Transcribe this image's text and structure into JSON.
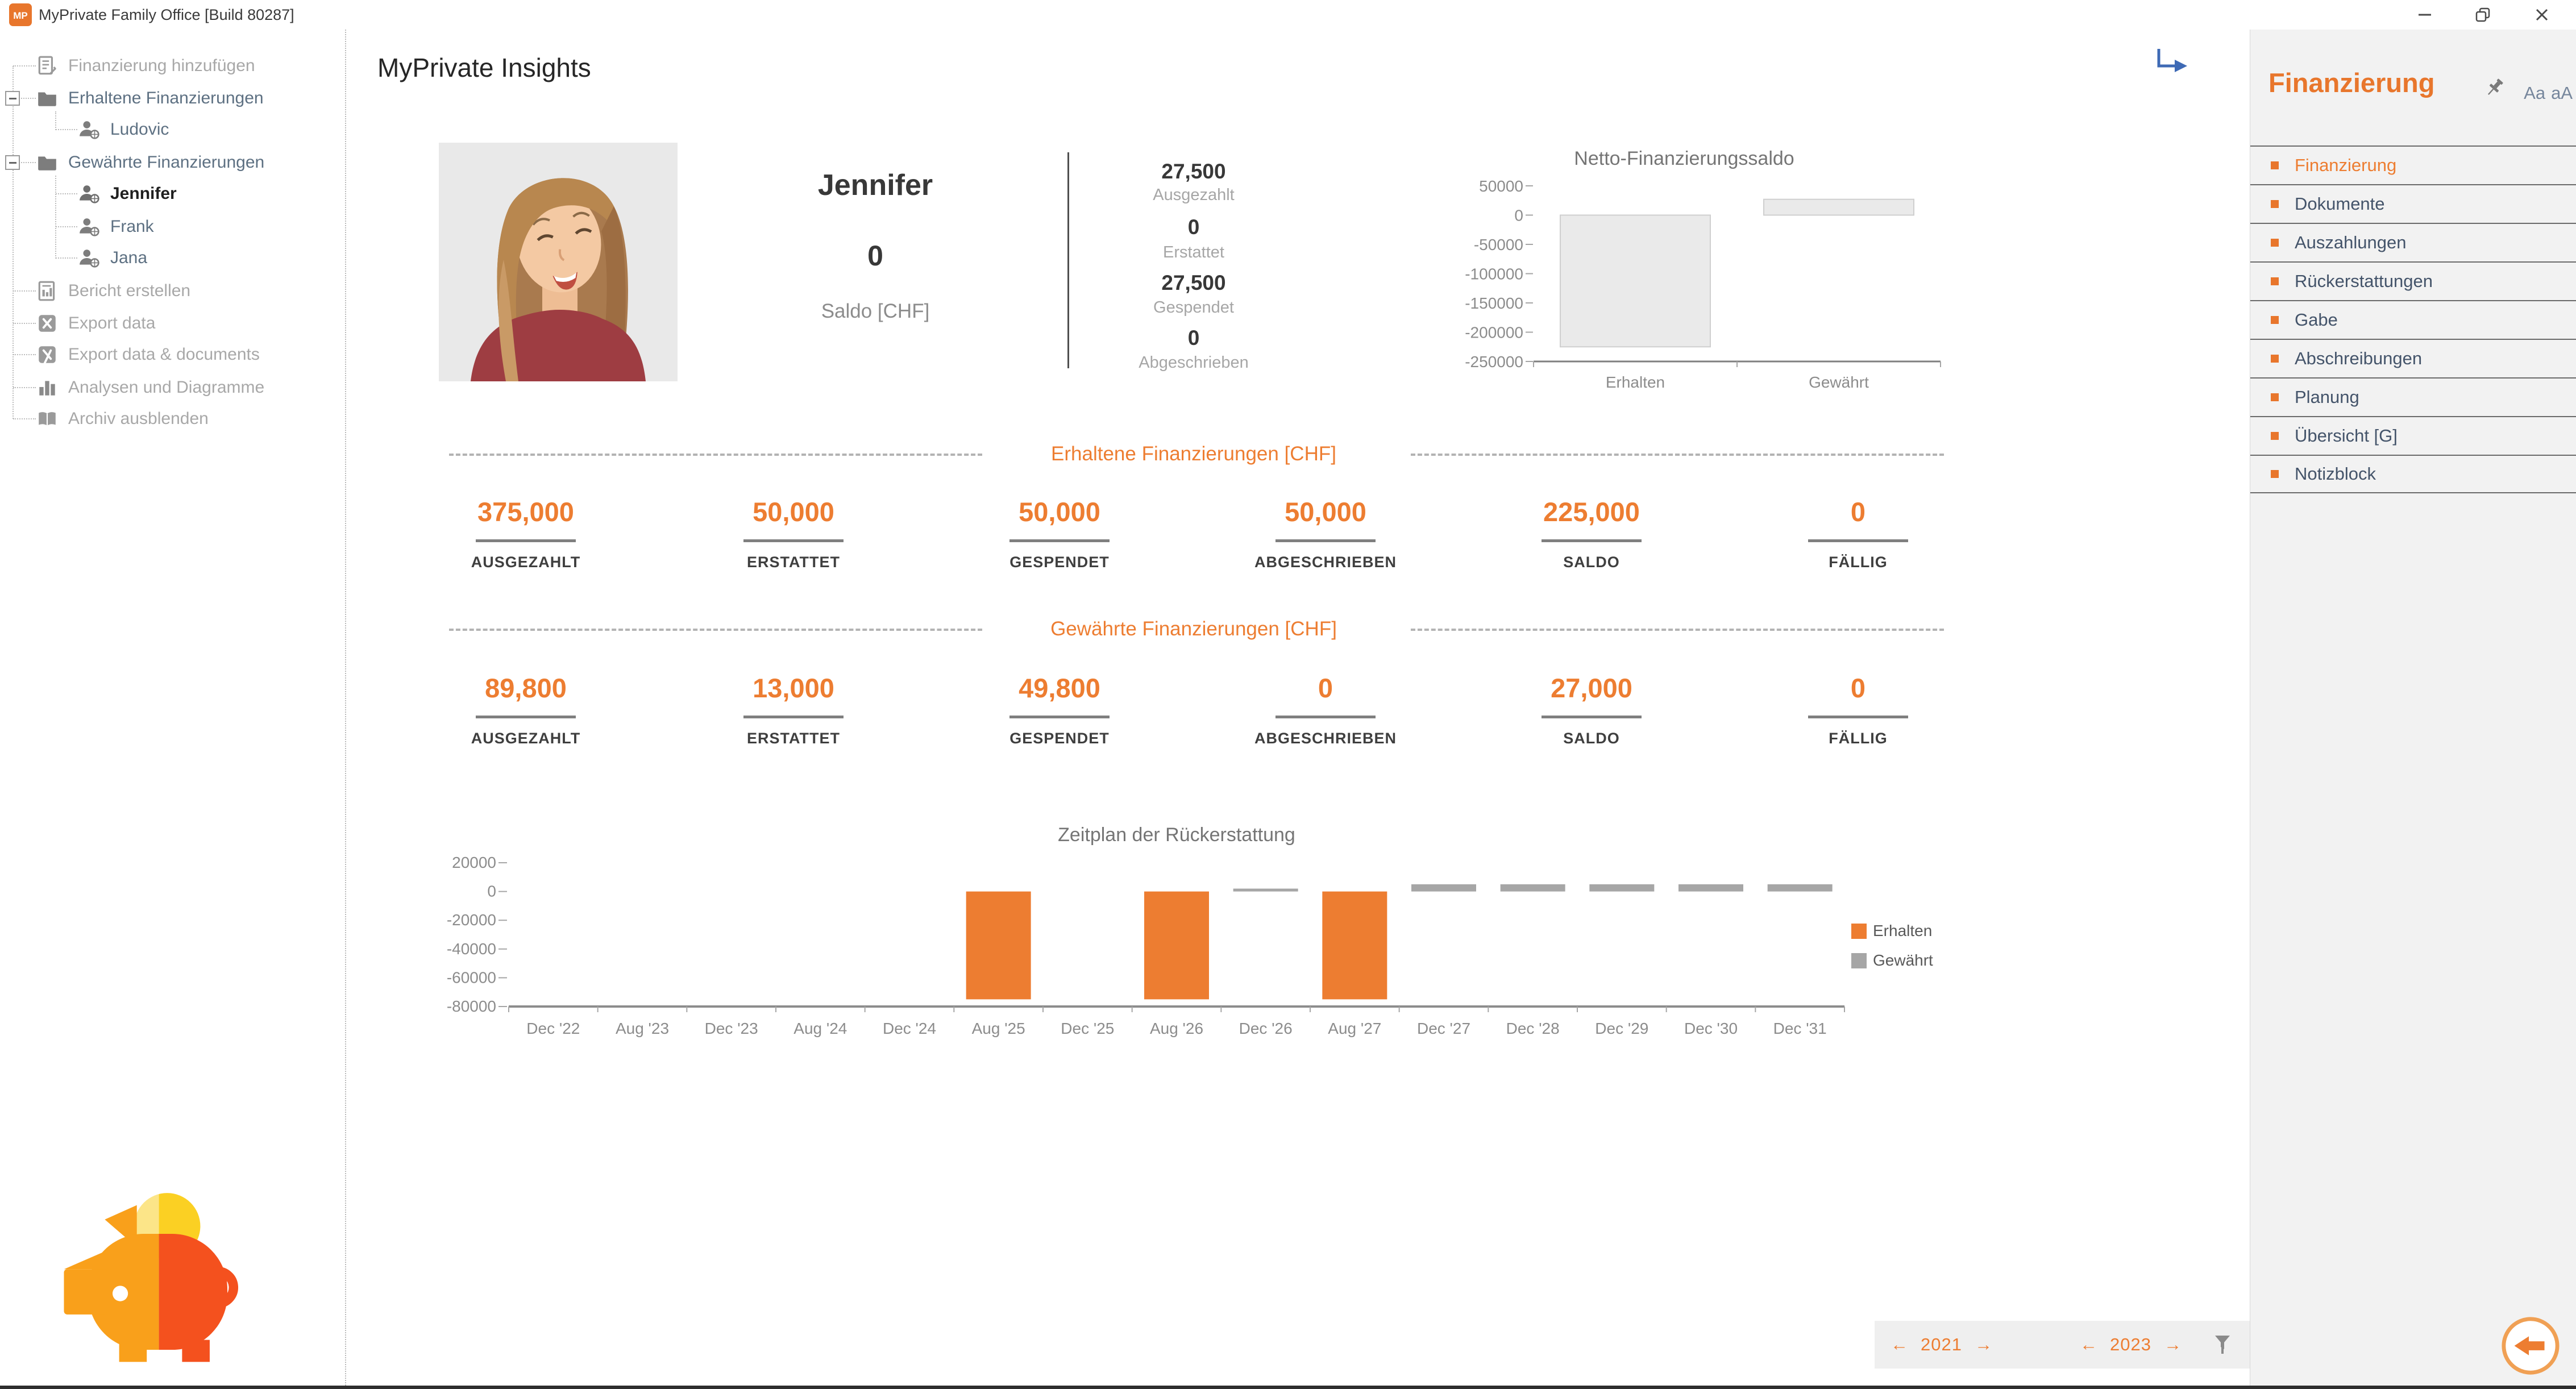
{
  "window": {
    "title": "MyPrivate Family Office [Build 80287]"
  },
  "left_nav": {
    "items": [
      {
        "label": "Finanzierung hinzufügen"
      },
      {
        "label": "Erhaltene Finanzierungen"
      },
      {
        "label": "Ludovic"
      },
      {
        "label": "Gewährte Finanzierungen"
      },
      {
        "label": "Jennifer"
      },
      {
        "label": "Frank"
      },
      {
        "label": "Jana"
      },
      {
        "label": "Bericht erstellen"
      },
      {
        "label": "Export data"
      },
      {
        "label": "Export data & documents"
      },
      {
        "label": "Analysen und Diagramme"
      },
      {
        "label": "Archiv ausblenden"
      }
    ]
  },
  "main": {
    "title": "MyPrivate Insights",
    "profile": {
      "name": "Jennifer",
      "balance_value": "0",
      "balance_label": "Saldo [CHF]",
      "stats": [
        {
          "value": "27,500",
          "label": "Ausgezahlt"
        },
        {
          "value": "0",
          "label": "Erstattet"
        },
        {
          "value": "27,500",
          "label": "Gespendet"
        },
        {
          "value": "0",
          "label": "Abgeschrieben"
        }
      ]
    },
    "sections": [
      {
        "title": "Erhaltene Finanzierungen [CHF]",
        "metrics": [
          {
            "value": "375,000",
            "label": "AUSGEZAHLT"
          },
          {
            "value": "50,000",
            "label": "ERSTATTET"
          },
          {
            "value": "50,000",
            "label": "GESPENDET"
          },
          {
            "value": "50,000",
            "label": "ABGESCHRIEBEN"
          },
          {
            "value": "225,000",
            "label": "SALDO"
          },
          {
            "value": "0",
            "label": "FÄLLIG"
          }
        ]
      },
      {
        "title": "Gewährte Finanzierungen [CHF]",
        "metrics": [
          {
            "value": "89,800",
            "label": "AUSGEZAHLT"
          },
          {
            "value": "13,000",
            "label": "ERSTATTET"
          },
          {
            "value": "49,800",
            "label": "GESPENDET"
          },
          {
            "value": "0",
            "label": "ABGESCHRIEBEN"
          },
          {
            "value": "27,000",
            "label": "SALDO"
          },
          {
            "value": "0",
            "label": "FÄLLIG"
          }
        ]
      }
    ],
    "footer": {
      "prev_arrow": "←",
      "next_arrow": "→",
      "year_left": "2021",
      "year_right": "2023"
    }
  },
  "right_sidebar": {
    "title": "Finanzierung",
    "font_controls": [
      "Aa",
      "aA"
    ],
    "items": [
      {
        "label": "Finanzierung"
      },
      {
        "label": "Dokumente"
      },
      {
        "label": "Auszahlungen"
      },
      {
        "label": "Rückerstattungen"
      },
      {
        "label": "Gabe"
      },
      {
        "label": "Abschreibungen"
      },
      {
        "label": "Planung"
      },
      {
        "label": "Übersicht [G]"
      },
      {
        "label": "Notizblock"
      }
    ]
  },
  "colors": {
    "accent": "#ED7D31",
    "bullet": "#E8762C",
    "muted_gray": "#A6A6A6",
    "chart_bar_fill": "#EAEAEA"
  },
  "chart_data": [
    {
      "type": "bar",
      "title": "Netto-Finanzierungssaldo",
      "categories": [
        "Erhalten",
        "Gewährt"
      ],
      "values": [
        -225000,
        27000
      ],
      "ylim": [
        -250000,
        50000
      ],
      "ytick_step": 50000,
      "bar_fill": "#EAEAEA",
      "bar_border": "#CFCFCF",
      "grid": false,
      "legend_position": "none"
    },
    {
      "type": "bar",
      "title": "Zeitplan der Rückerstattung",
      "categories": [
        "Dec '22",
        "Aug '23",
        "Dec '23",
        "Aug '24",
        "Dec '24",
        "Aug '25",
        "Dec '25",
        "Aug '26",
        "Dec '26",
        "Aug '27",
        "Dec '27",
        "Dec '28",
        "Dec '29",
        "Dec '30",
        "Dec '31"
      ],
      "series": [
        {
          "name": "Erhalten",
          "color": "#ED7D31",
          "values": [
            0,
            0,
            0,
            0,
            0,
            -75000,
            0,
            -75000,
            0,
            -75000,
            0,
            0,
            0,
            0,
            0
          ]
        },
        {
          "name": "Gewährt",
          "color": "#A6A6A6",
          "values": [
            0,
            0,
            0,
            0,
            0,
            0,
            0,
            0,
            2000,
            0,
            5000,
            5000,
            5000,
            5000,
            5000
          ]
        }
      ],
      "ylim": [
        -80000,
        20000
      ],
      "ytick_step": 20000,
      "grid": false,
      "legend_position": "right"
    }
  ]
}
